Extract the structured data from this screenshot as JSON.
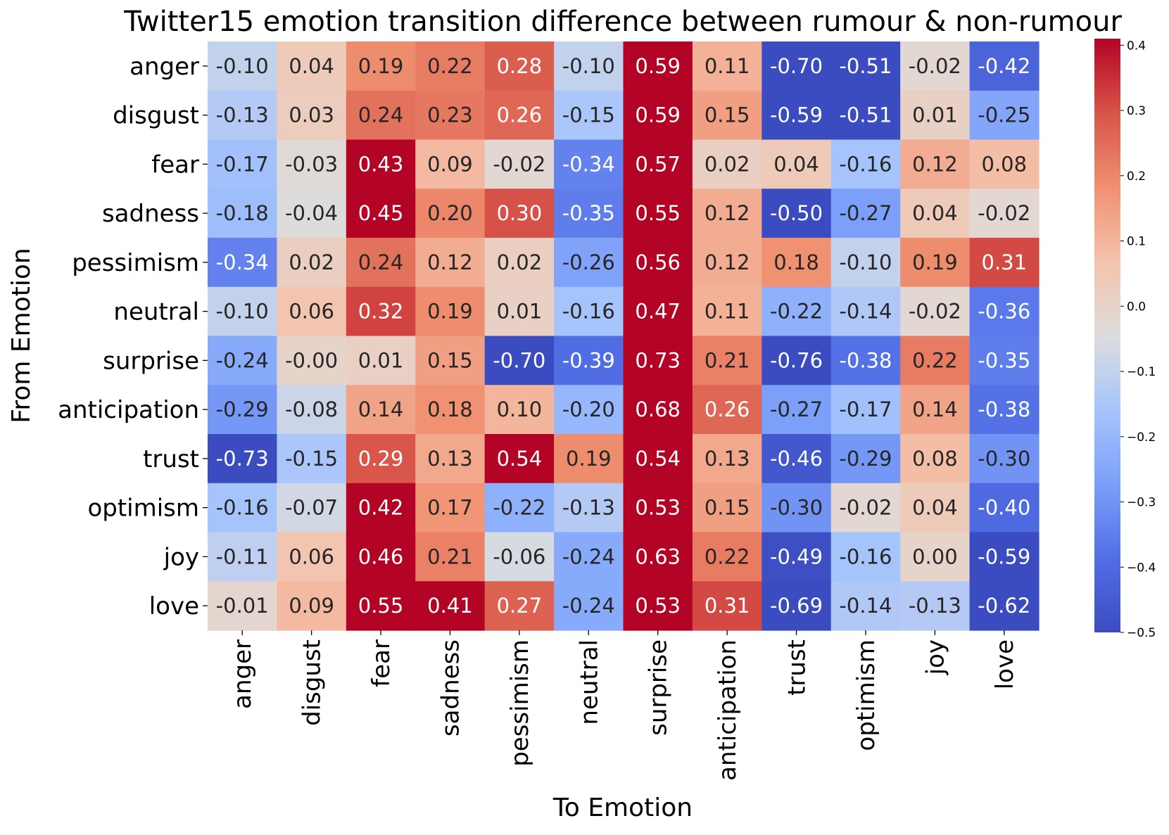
{
  "chart_data": {
    "type": "heatmap",
    "title": "Twitter15 emotion transition difference between rumour & non-rumour",
    "xlabel": "To Emotion",
    "ylabel": "From Emotion",
    "row_labels": [
      "anger",
      "disgust",
      "fear",
      "sadness",
      "pessimism",
      "neutral",
      "surprise",
      "anticipation",
      "trust",
      "optimism",
      "joy",
      "love"
    ],
    "col_labels": [
      "anger",
      "disgust",
      "fear",
      "sadness",
      "pessimism",
      "neutral",
      "surprise",
      "anticipation",
      "trust",
      "optimism",
      "joy",
      "love"
    ],
    "values": [
      [
        -0.1,
        0.04,
        0.19,
        0.22,
        0.28,
        -0.1,
        0.59,
        0.11,
        -0.7,
        -0.51,
        -0.02,
        -0.42
      ],
      [
        -0.13,
        0.03,
        0.24,
        0.23,
        0.26,
        -0.15,
        0.59,
        0.15,
        -0.59,
        -0.51,
        0.01,
        -0.25
      ],
      [
        -0.17,
        -0.03,
        0.43,
        0.09,
        -0.02,
        -0.34,
        0.57,
        0.02,
        0.04,
        -0.16,
        0.12,
        0.08
      ],
      [
        -0.18,
        -0.04,
        0.45,
        0.2,
        0.3,
        -0.35,
        0.55,
        0.12,
        -0.5,
        -0.27,
        0.04,
        -0.02
      ],
      [
        -0.34,
        0.02,
        0.24,
        0.12,
        0.02,
        -0.26,
        0.56,
        0.12,
        0.18,
        -0.1,
        0.19,
        0.31
      ],
      [
        -0.1,
        0.06,
        0.32,
        0.19,
        0.01,
        -0.16,
        0.47,
        0.11,
        -0.22,
        -0.14,
        -0.02,
        -0.36
      ],
      [
        -0.24,
        -0.0,
        0.01,
        0.15,
        -0.7,
        -0.39,
        0.73,
        0.21,
        -0.76,
        -0.38,
        0.22,
        -0.35
      ],
      [
        -0.29,
        -0.08,
        0.14,
        0.18,
        0.1,
        -0.2,
        0.68,
        0.26,
        -0.27,
        -0.17,
        0.14,
        -0.38
      ],
      [
        -0.73,
        -0.15,
        0.29,
        0.13,
        0.54,
        0.19,
        0.54,
        0.13,
        -0.46,
        -0.29,
        0.08,
        -0.3
      ],
      [
        -0.16,
        -0.07,
        0.42,
        0.17,
        -0.22,
        -0.13,
        0.53,
        0.15,
        -0.3,
        -0.02,
        0.04,
        -0.4
      ],
      [
        -0.11,
        0.06,
        0.46,
        0.21,
        -0.06,
        -0.24,
        0.63,
        0.22,
        -0.49,
        -0.16,
        0.0,
        -0.59
      ],
      [
        -0.01,
        0.09,
        0.55,
        0.41,
        0.27,
        -0.24,
        0.53,
        0.31,
        -0.69,
        -0.14,
        -0.13,
        -0.62
      ]
    ],
    "cell_labels": [
      [
        "-0.10",
        "0.04",
        "0.19",
        "0.22",
        "0.28",
        "-0.10",
        "0.59",
        "0.11",
        "-0.70",
        "-0.51",
        "-0.02",
        "-0.42"
      ],
      [
        "-0.13",
        "0.03",
        "0.24",
        "0.23",
        "0.26",
        "-0.15",
        "0.59",
        "0.15",
        "-0.59",
        "-0.51",
        "0.01",
        "-0.25"
      ],
      [
        "-0.17",
        "-0.03",
        "0.43",
        "0.09",
        "-0.02",
        "-0.34",
        "0.57",
        "0.02",
        "0.04",
        "-0.16",
        "0.12",
        "0.08"
      ],
      [
        "-0.18",
        "-0.04",
        "0.45",
        "0.20",
        "0.30",
        "-0.35",
        "0.55",
        "0.12",
        "-0.50",
        "-0.27",
        "0.04",
        "-0.02"
      ],
      [
        "-0.34",
        "0.02",
        "0.24",
        "0.12",
        "0.02",
        "-0.26",
        "0.56",
        "0.12",
        "0.18",
        "-0.10",
        "0.19",
        "0.31"
      ],
      [
        "-0.10",
        "0.06",
        "0.32",
        "0.19",
        "0.01",
        "-0.16",
        "0.47",
        "0.11",
        "-0.22",
        "-0.14",
        "-0.02",
        "-0.36"
      ],
      [
        "-0.24",
        "-0.00",
        "0.01",
        "0.15",
        "-0.70",
        "-0.39",
        "0.73",
        "0.21",
        "-0.76",
        "-0.38",
        "0.22",
        "-0.35"
      ],
      [
        "-0.29",
        "-0.08",
        "0.14",
        "0.18",
        "0.10",
        "-0.20",
        "0.68",
        "0.26",
        "-0.27",
        "-0.17",
        "0.14",
        "-0.38"
      ],
      [
        "-0.73",
        "-0.15",
        "0.29",
        "0.13",
        "0.54",
        "0.19",
        "0.54",
        "0.13",
        "-0.46",
        "-0.29",
        "0.08",
        "-0.30"
      ],
      [
        "-0.16",
        "-0.07",
        "0.42",
        "0.17",
        "-0.22",
        "-0.13",
        "0.53",
        "0.15",
        "-0.30",
        "-0.02",
        "0.04",
        "-0.40"
      ],
      [
        "-0.11",
        "0.06",
        "0.46",
        "0.21",
        "-0.06",
        "-0.24",
        "0.63",
        "0.22",
        "-0.49",
        "-0.16",
        "0.00",
        "-0.59"
      ],
      [
        "-0.01",
        "0.09",
        "0.55",
        "0.41",
        "0.27",
        "-0.24",
        "0.53",
        "0.31",
        "-0.69",
        "-0.14",
        "-0.13",
        "-0.62"
      ]
    ],
    "colormap": "coolwarm",
    "color_range": [
      -0.5,
      0.41
    ],
    "colorbar_ticks": [
      {
        "value": 0.4,
        "label": "0.4"
      },
      {
        "value": 0.3,
        "label": "0.3"
      },
      {
        "value": 0.2,
        "label": "0.2"
      },
      {
        "value": 0.1,
        "label": "0.1"
      },
      {
        "value": 0.0,
        "label": "0.0"
      },
      {
        "value": -0.1,
        "label": "−0.1"
      },
      {
        "value": -0.2,
        "label": "−0.2"
      },
      {
        "value": -0.3,
        "label": "−0.3"
      },
      {
        "value": -0.4,
        "label": "−0.4"
      },
      {
        "value": -0.5,
        "label": "−0.5"
      }
    ],
    "legend": "right"
  }
}
